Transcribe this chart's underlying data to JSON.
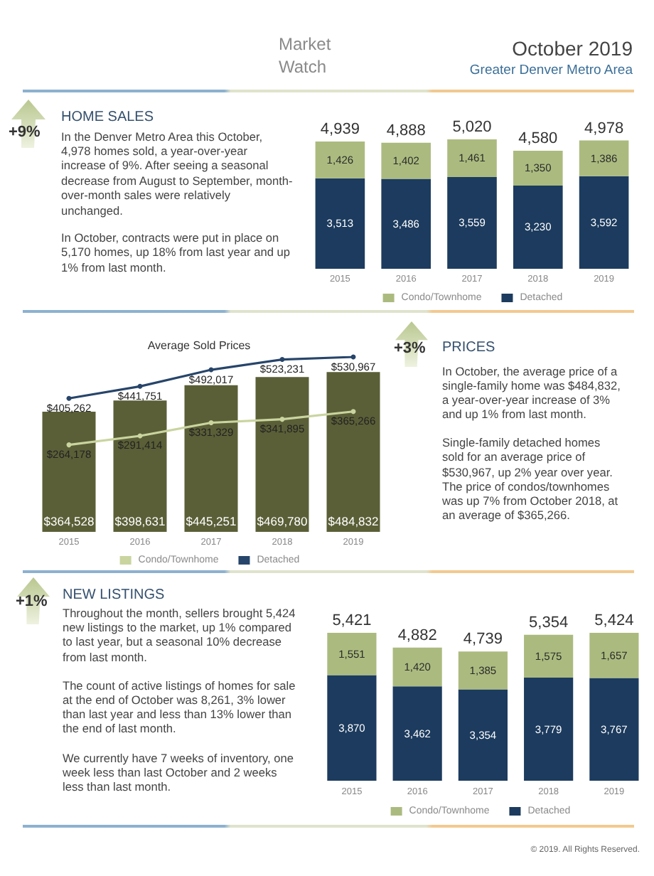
{
  "chart_data": [
    {
      "type": "other",
      "title": "October 2019",
      "subtitle": "Greater Denver Metro Area",
      "annotations": [
        "Market Watch"
      ]
    },
    {
      "type": "other",
      "title": "HOME SALES",
      "annotations": [
        "+9%",
        "In the Denver Metro Area this October, 4,978 homes sold, a year-over-year increase of 9%. After seeing a seasonal decrease from August to September, month-over-month sales were relatively unchanged.",
        "In October, contracts were put in place on 5,170 homes, up 18% from last year and up 1% from last month."
      ]
    },
    {
      "type": "bar",
      "stacked": true,
      "categories": [
        "2015",
        "2016",
        "2017",
        "2018",
        "2019"
      ],
      "series": [
        {
          "name": "Detached",
          "color": "#1c3b5e",
          "values": [
            3513,
            3486,
            3559,
            3230,
            3592
          ],
          "value_labels": [
            "3,513",
            "3,486",
            "3,559",
            "3,230",
            "3,592"
          ]
        },
        {
          "name": "Condo/Townhome",
          "color": "#abbb7f",
          "values": [
            1426,
            1402,
            1461,
            1350,
            1386
          ],
          "value_labels": [
            "1,426",
            "1,402",
            "1,461",
            "1,350",
            "1,386"
          ]
        }
      ],
      "totals": [
        "4,939",
        "4,888",
        "5,020",
        "4,580",
        "4,978"
      ],
      "legend": "bottom",
      "tick_labels": "x"
    },
    {
      "type": "bar",
      "title": "Average Sold Prices",
      "categories": [
        "2015",
        "2016",
        "2017",
        "2018",
        "2019"
      ],
      "series": [
        {
          "color": "#5b5f37",
          "values": [
            364528,
            398631,
            445251,
            469780,
            484832
          ],
          "value_labels": [
            "$364,528",
            "$398,631",
            "$445,251",
            "$469,780",
            "$484,832"
          ]
        },
        {
          "name": "Condo/Townhome",
          "type": "line",
          "color": "#c9d49f",
          "values": [
            264178,
            291414,
            331329,
            341895,
            365266
          ],
          "value_labels": [
            "$264,178",
            "$291,414",
            "$331,329",
            "$341,895",
            "$365,266"
          ]
        },
        {
          "name": "Detached",
          "type": "line",
          "color": "#27456a",
          "values": [
            405262,
            441751,
            492017,
            523231,
            530967
          ],
          "value_labels": [
            "$405,262",
            "$441,751",
            "$492,017",
            "$523,231",
            "$530,967"
          ]
        }
      ],
      "marker": "circle",
      "legend": "bottom",
      "tick_labels": "x"
    },
    {
      "type": "other",
      "title": "PRICES",
      "annotations": [
        "+3%",
        "In October, the average price of a single-family home was $484,832, a year-over-year increase of 3% and up 1% from last month.",
        "Single-family detached homes sold for an average price of $530,967, up 2% year over year. The price of condos/townhomes was up 7% from October 2018, at an average of $365,266."
      ]
    },
    {
      "type": "other",
      "title": "NEW LISTINGS",
      "annotations": [
        "+1%",
        "Throughout the month, sellers brought 5,424 new listings to the market, up 1% compared to last year, but a seasonal 10% decrease from last month.",
        "The count of active listings of homes for sale at the end of October was 8,261, 3% lower than last year and less than 13% lower than the end of last month.",
        "We currently have 7 weeks of inventory, one week less than last October and 2 weeks less than last month."
      ]
    },
    {
      "type": "bar",
      "stacked": true,
      "categories": [
        "2015",
        "2016",
        "2017",
        "2018",
        "2019"
      ],
      "series": [
        {
          "name": "Detached",
          "color": "#1c3b5e",
          "values": [
            3870,
            3462,
            3354,
            3779,
            3767
          ],
          "value_labels": [
            "3,870",
            "3,462",
            "3,354",
            "3,779",
            "3,767"
          ]
        },
        {
          "name": "Condo/Townhome",
          "color": "#abbb7f",
          "values": [
            1551,
            1420,
            1385,
            1575,
            1657
          ],
          "value_labels": [
            "1,551",
            "1,420",
            "1,385",
            "1,575",
            "1,657"
          ]
        }
      ],
      "totals": [
        "5,421",
        "4,882",
        "4,739",
        "5,354",
        "5,424"
      ],
      "legend": "bottom",
      "tick_labels": "x"
    },
    {
      "type": "other",
      "annotations": [
        "© 2019. All Rights Reserved."
      ]
    }
  ]
}
